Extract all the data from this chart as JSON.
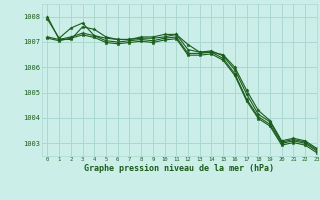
{
  "xlabel": "Graphe pression niveau de la mer (hPa)",
  "bg_color": "#cceee8",
  "grid_color": "#aad8d0",
  "line_color": "#1a5c1a",
  "ylim": [
    1002.5,
    1008.5
  ],
  "xlim": [
    -0.5,
    23
  ],
  "yticks": [
    1003,
    1004,
    1005,
    1006,
    1007,
    1008
  ],
  "xticks": [
    0,
    1,
    2,
    3,
    4,
    5,
    6,
    7,
    8,
    9,
    10,
    11,
    12,
    13,
    14,
    15,
    16,
    17,
    18,
    19,
    20,
    21,
    22,
    23
  ],
  "series": [
    [
      1008.0,
      1007.1,
      1007.1,
      1007.6,
      1007.5,
      1007.2,
      1007.1,
      1007.1,
      1007.2,
      1007.2,
      1007.3,
      1007.3,
      1006.9,
      1006.6,
      1006.6,
      1006.5,
      1006.0,
      1005.1,
      1004.3,
      1003.9,
      1003.1,
      1003.2,
      1003.1,
      1002.8
    ],
    [
      1007.9,
      1007.15,
      1007.55,
      1007.75,
      1007.25,
      1007.15,
      1007.1,
      1007.1,
      1007.15,
      1007.15,
      1007.2,
      1007.3,
      1006.7,
      1006.6,
      1006.65,
      1006.45,
      1005.9,
      1004.95,
      1004.15,
      1003.85,
      1003.05,
      1003.15,
      1003.05,
      1002.75
    ],
    [
      1007.2,
      1007.1,
      1007.2,
      1007.35,
      1007.25,
      1007.05,
      1007.0,
      1007.05,
      1007.1,
      1007.05,
      1007.15,
      1007.2,
      1006.55,
      1006.55,
      1006.6,
      1006.35,
      1005.75,
      1004.75,
      1004.05,
      1003.75,
      1003.0,
      1003.1,
      1003.0,
      1002.7
    ],
    [
      1007.15,
      1007.05,
      1007.15,
      1007.28,
      1007.18,
      1006.98,
      1006.93,
      1006.98,
      1007.03,
      1006.98,
      1007.08,
      1007.13,
      1006.48,
      1006.48,
      1006.53,
      1006.28,
      1005.68,
      1004.68,
      1003.98,
      1003.68,
      1002.93,
      1003.03,
      1002.93,
      1002.63
    ]
  ]
}
